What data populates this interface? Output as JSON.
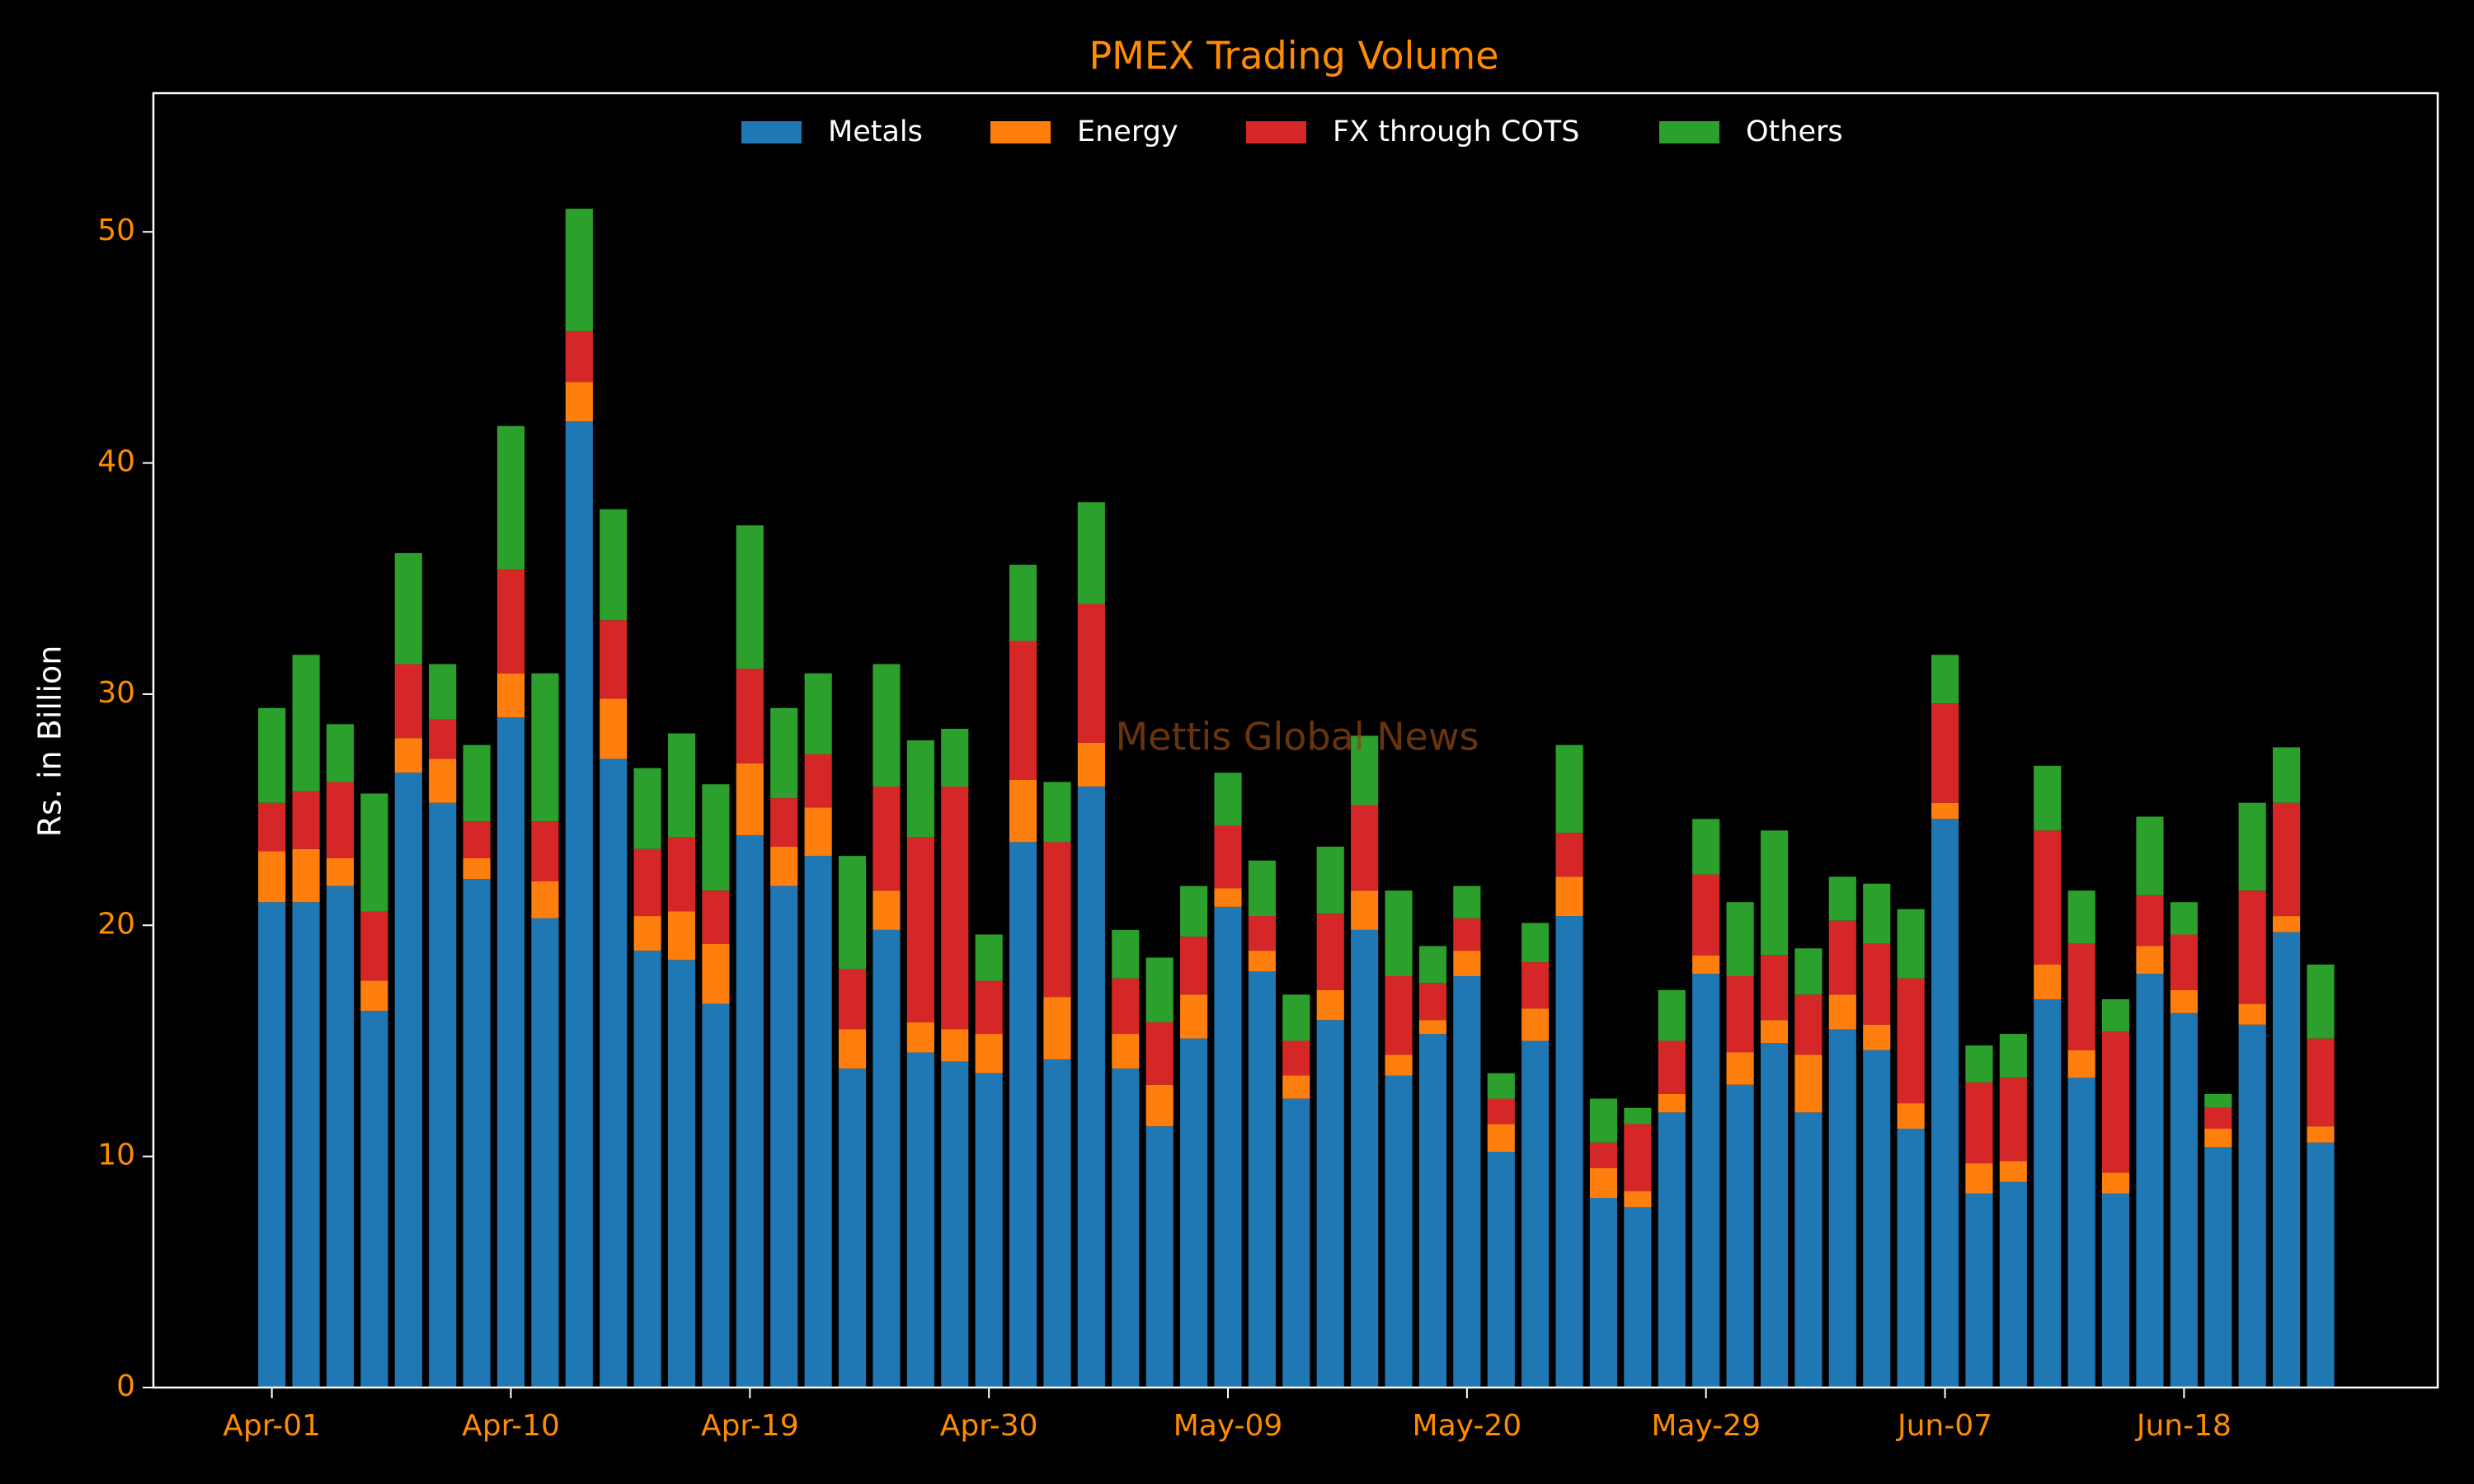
{
  "chart_data": {
    "type": "stacked_bar",
    "title": "PMEX Trading Volume",
    "ylabel": "Rs. in Billion",
    "annotation": "Mettis Global News",
    "categories": [
      "Apr-01",
      null,
      null,
      null,
      null,
      null,
      null,
      "Apr-10",
      null,
      null,
      null,
      null,
      null,
      null,
      "Apr-19",
      null,
      null,
      null,
      null,
      null,
      null,
      "Apr-30",
      null,
      null,
      null,
      null,
      null,
      null,
      "May-09",
      null,
      null,
      null,
      null,
      null,
      null,
      "May-20",
      null,
      null,
      null,
      null,
      null,
      null,
      "May-29",
      null,
      null,
      null,
      null,
      null,
      null,
      "Jun-07",
      null,
      null,
      null,
      null,
      null,
      null,
      "Jun-18",
      null,
      null,
      null,
      null
    ],
    "series": [
      {
        "name": "Metals",
        "color": "#1f77b4",
        "values": [
          21.0,
          21.0,
          21.7,
          16.3,
          26.6,
          25.3,
          22.0,
          29.0,
          20.3,
          41.8,
          27.2,
          18.9,
          18.5,
          16.6,
          23.9,
          21.7,
          23.0,
          13.8,
          19.8,
          14.5,
          14.1,
          13.6,
          23.6,
          14.2,
          26.0,
          13.8,
          11.3,
          15.1,
          20.8,
          18.0,
          12.5,
          15.9,
          19.8,
          13.5,
          15.3,
          17.8,
          10.2,
          15.0,
          20.4,
          8.2,
          7.8,
          11.9,
          17.9,
          13.1,
          14.9,
          11.9,
          15.5,
          14.6,
          11.2,
          24.6,
          8.4,
          8.9,
          16.8,
          13.4,
          8.4,
          17.9,
          16.2,
          10.4,
          15.7,
          19.7,
          10.6
        ]
      },
      {
        "name": "Energy",
        "color": "#ff7f0e",
        "values": [
          2.2,
          2.3,
          1.2,
          1.3,
          1.5,
          1.9,
          0.9,
          1.9,
          1.6,
          1.7,
          2.6,
          1.5,
          2.1,
          2.6,
          3.1,
          1.7,
          2.1,
          1.7,
          1.7,
          1.3,
          1.4,
          1.7,
          2.7,
          2.7,
          1.9,
          1.5,
          1.8,
          1.9,
          0.8,
          0.9,
          1.0,
          1.3,
          1.7,
          0.9,
          0.6,
          1.1,
          1.2,
          1.4,
          1.7,
          1.3,
          0.7,
          0.8,
          0.8,
          1.4,
          1.0,
          2.5,
          1.5,
          1.1,
          1.1,
          0.7,
          1.3,
          0.9,
          1.5,
          1.2,
          0.9,
          1.2,
          1.0,
          0.8,
          0.9,
          0.7,
          0.7
        ]
      },
      {
        "name": "FX through COTS",
        "color": "#d62728",
        "values": [
          2.1,
          2.5,
          3.3,
          3.0,
          3.2,
          1.7,
          1.6,
          4.5,
          2.6,
          2.2,
          3.4,
          2.9,
          3.2,
          2.3,
          4.1,
          2.1,
          2.3,
          2.6,
          4.5,
          8.0,
          10.5,
          2.3,
          6.0,
          6.7,
          6.0,
          2.4,
          2.7,
          2.5,
          2.7,
          1.5,
          1.5,
          3.3,
          3.7,
          3.4,
          1.6,
          1.4,
          1.1,
          2.0,
          1.9,
          1.1,
          2.9,
          2.3,
          3.5,
          3.3,
          2.8,
          2.6,
          3.2,
          3.5,
          5.4,
          4.3,
          3.5,
          3.6,
          5.8,
          4.6,
          6.1,
          2.2,
          2.4,
          0.9,
          4.9,
          4.9,
          3.8
        ]
      },
      {
        "name": "Others",
        "color": "#2ca02c",
        "values": [
          4.1,
          5.9,
          2.5,
          5.1,
          4.8,
          2.4,
          3.3,
          6.2,
          6.4,
          5.3,
          4.8,
          3.5,
          4.5,
          4.6,
          6.2,
          3.9,
          3.5,
          4.9,
          5.3,
          4.2,
          2.5,
          2.0,
          3.3,
          2.6,
          4.4,
          2.1,
          2.8,
          2.2,
          2.3,
          2.4,
          2.0,
          2.9,
          3.0,
          3.7,
          1.6,
          1.4,
          1.1,
          1.7,
          3.8,
          1.9,
          0.7,
          2.2,
          2.4,
          3.2,
          5.4,
          2.0,
          1.9,
          2.6,
          3.0,
          2.1,
          1.6,
          1.9,
          2.8,
          2.3,
          1.4,
          3.4,
          1.4,
          0.6,
          3.8,
          2.4,
          3.2
        ]
      }
    ],
    "ylim": [
      0,
      56
    ],
    "yticks": [
      0,
      10,
      20,
      30,
      40,
      50
    ],
    "legend": "upper center",
    "grid": false
  }
}
